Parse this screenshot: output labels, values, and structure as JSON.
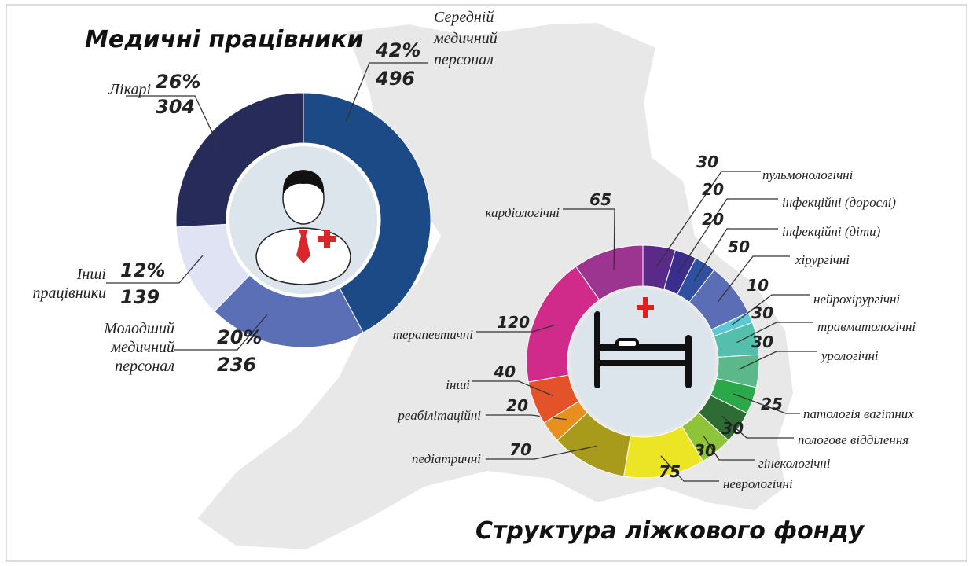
{
  "chart_data": [
    {
      "type": "donut",
      "title": "Медичні працівники",
      "categories": [
        "Середній медичний персонал",
        "Молодший медичний персонал",
        "Інші працівники",
        "Лікарі"
      ],
      "values": [
        496,
        236,
        139,
        304
      ],
      "share_labels": [
        "42%",
        "20%",
        "12%",
        "26%"
      ],
      "colors": [
        "#1b4a87",
        "#5a6fb5",
        "#dfe3f3",
        "#262b5a"
      ]
    },
    {
      "type": "donut",
      "title": "Структура ліжкового фонду",
      "categories": [
        "пульмонологічні",
        "інфекційні (дорослі)",
        "інфекційні (діти)",
        "хірургічні",
        "нейрохірургічні",
        "травматологічні",
        "урологічні",
        "патологія вагітних",
        "пологове відділення",
        "гінекологічні",
        "неврологічні",
        "педіатричні",
        "реабілітаційні",
        "інші",
        "терапевтичні",
        "кардіологічні"
      ],
      "values": [
        30,
        20,
        20,
        50,
        10,
        30,
        30,
        25,
        30,
        30,
        75,
        70,
        20,
        40,
        120,
        65
      ],
      "colors": [
        "#5a2a8a",
        "#3b2d8c",
        "#2f4fa0",
        "#5a6db5",
        "#5cc8d4",
        "#55bfae",
        "#5ab88a",
        "#2aa84a",
        "#2e6b35",
        "#8fc43a",
        "#ece526",
        "#a89a1a",
        "#e8901e",
        "#e4522a",
        "#d02a8a",
        "#9b3590"
      ]
    }
  ]
}
